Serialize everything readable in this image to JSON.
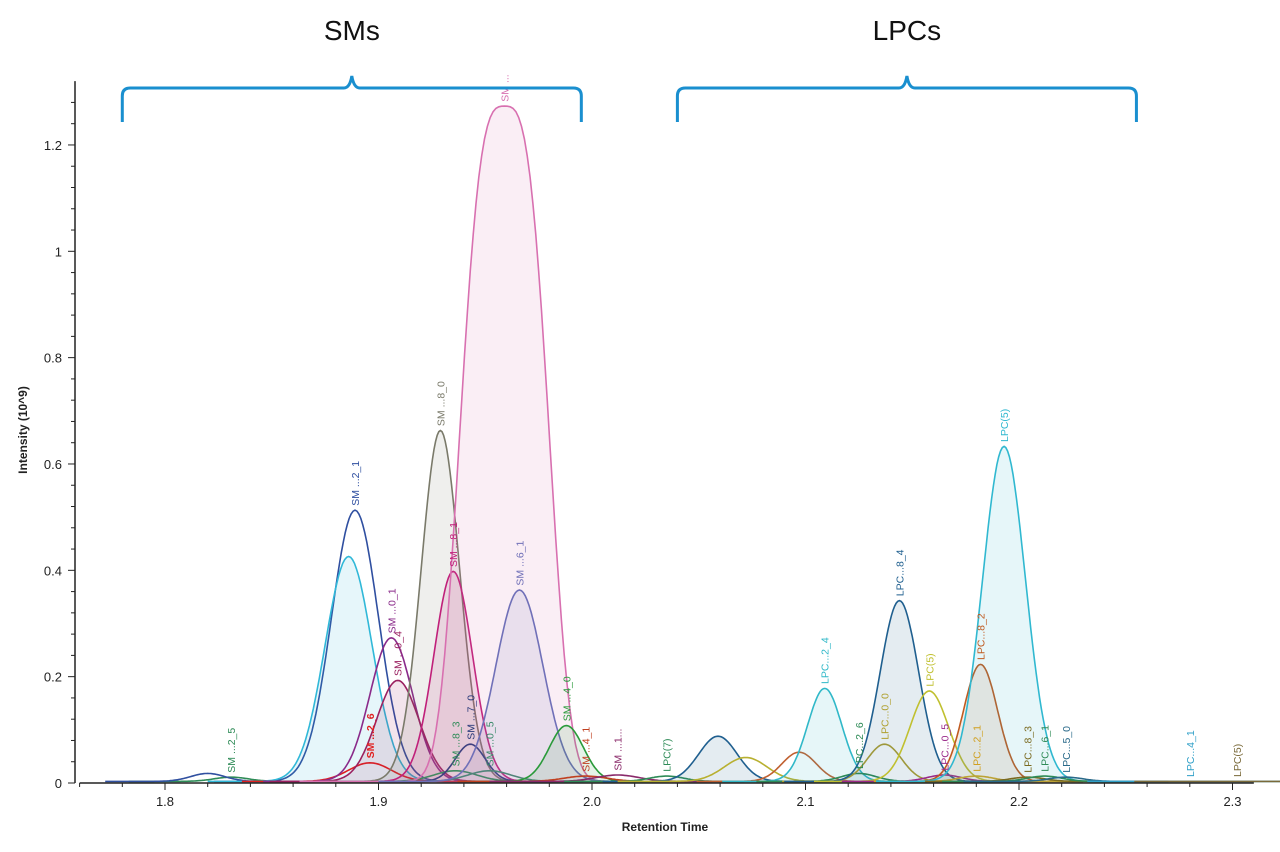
{
  "chart_data": {
    "type": "line",
    "xlabel": "Retention Time",
    "ylabel": "Intensity (10^9)",
    "xlim": [
      1.76,
      2.31
    ],
    "ylim": [
      0,
      1.32
    ],
    "xticks": [
      "1.8",
      "1.9",
      "2.0",
      "2.1",
      "2.2",
      "2.3"
    ],
    "yticks": [
      "0",
      "0.2",
      "0.4",
      "0.6",
      "0.8",
      "1",
      "1.2"
    ],
    "grid": false,
    "groups": [
      {
        "label": "SMs",
        "x_range": [
          1.78,
          1.995
        ]
      },
      {
        "label": "LPCs",
        "x_range": [
          2.04,
          2.255
        ]
      }
    ],
    "peaks": [
      {
        "label": "SM ...2_5",
        "color": "#2e8b57",
        "rt": 1.831,
        "intensity": 0.008,
        "width": 0.008,
        "fill": false
      },
      {
        "label": "",
        "color": "#3050a0",
        "rt": 1.82,
        "intensity": 0.015,
        "width": 0.008,
        "fill": false
      },
      {
        "label": "SM ...2_1",
        "color": "#2f4fa0",
        "rt": 1.889,
        "intensity": 0.51,
        "width": 0.011,
        "fill": false
      },
      {
        "label": "",
        "color": "#30b8d8",
        "rt": 1.886,
        "intensity": 0.423,
        "width": 0.011,
        "fill": true
      },
      {
        "label": "SM ...2_6",
        "color": "#e02020",
        "rt": 1.896,
        "intensity": 0.035,
        "width": 0.01,
        "fill": false,
        "bold": true
      },
      {
        "label": "SM ...0_1",
        "color": "#8a2a8a",
        "rt": 1.906,
        "intensity": 0.27,
        "width": 0.01,
        "fill": false
      },
      {
        "label": "SM ...0_4",
        "color": "#9a2060",
        "rt": 1.909,
        "intensity": 0.19,
        "width": 0.01,
        "fill": true
      },
      {
        "label": "SM ...8_0",
        "color": "#7a7a6a",
        "rt": 1.929,
        "intensity": 0.66,
        "width": 0.009,
        "fill": true
      },
      {
        "label": "SM ...8_1",
        "color": "#c0207a",
        "rt": 1.935,
        "intensity": 0.395,
        "width": 0.009,
        "fill": true
      },
      {
        "label": "SM ...8_3",
        "color": "#2e8b57",
        "rt": 1.936,
        "intensity": 0.02,
        "width": 0.01,
        "fill": false
      },
      {
        "label": "SM ...7_0",
        "color": "#2a3a7a",
        "rt": 1.943,
        "intensity": 0.07,
        "width": 0.007,
        "fill": false
      },
      {
        "label": "SM ...0_5",
        "color": "#3a8a6a",
        "rt": 1.952,
        "intensity": 0.02,
        "width": 0.01,
        "fill": false
      },
      {
        "label": "SM ...",
        "color": "#d870b0",
        "rt": 1.959,
        "intensity": 1.27,
        "width": 0.016,
        "fill": true,
        "flat": true
      },
      {
        "label": "SM ...6_1",
        "color": "#7070b8",
        "rt": 1.966,
        "intensity": 0.36,
        "width": 0.011,
        "fill": true
      },
      {
        "label": "SM ...4_0",
        "color": "#2a9a3a",
        "rt": 1.988,
        "intensity": 0.105,
        "width": 0.008,
        "fill": true
      },
      {
        "label": "SM ...4_1",
        "color": "#c04020",
        "rt": 1.997,
        "intensity": 0.01,
        "width": 0.01,
        "fill": false
      },
      {
        "label": "SM ...1...",
        "color": "#8a2a6a",
        "rt": 2.012,
        "intensity": 0.012,
        "width": 0.01,
        "fill": false
      },
      {
        "label": "LPC(7)",
        "color": "#2e8b57",
        "rt": 2.035,
        "intensity": 0.01,
        "width": 0.008,
        "fill": false
      },
      {
        "label": "",
        "color": "#1f5f8f",
        "rt": 2.059,
        "intensity": 0.085,
        "width": 0.009,
        "fill": true
      },
      {
        "label": "",
        "color": "#b8b030",
        "rt": 2.072,
        "intensity": 0.045,
        "width": 0.01,
        "fill": false
      },
      {
        "label": "",
        "color": "#c06030",
        "rt": 2.097,
        "intensity": 0.055,
        "width": 0.008,
        "fill": false
      },
      {
        "label": "LPC...2_4",
        "color": "#30b8c8",
        "rt": 2.109,
        "intensity": 0.175,
        "width": 0.008,
        "fill": true
      },
      {
        "label": "LPC...2_6",
        "color": "#2e8b57",
        "rt": 2.125,
        "intensity": 0.015,
        "width": 0.008,
        "fill": false
      },
      {
        "label": "LPC...0_0",
        "color": "#b0a030",
        "rt": 2.137,
        "intensity": 0.07,
        "width": 0.008,
        "fill": false
      },
      {
        "label": "LPC...8_4",
        "color": "#1f5f8f",
        "rt": 2.144,
        "intensity": 0.34,
        "width": 0.009,
        "fill": true
      },
      {
        "label": "LPC(5)",
        "color": "#c0c030",
        "rt": 2.158,
        "intensity": 0.17,
        "width": 0.009,
        "fill": false
      },
      {
        "label": "LPC...0_5",
        "color": "#9a2a8a",
        "rt": 2.165,
        "intensity": 0.012,
        "width": 0.008,
        "fill": false
      },
      {
        "label": "LPC...8_2",
        "color": "#c05a20",
        "rt": 2.182,
        "intensity": 0.22,
        "width": 0.008,
        "fill": true
      },
      {
        "label": "LPC...2_1",
        "color": "#d0a020",
        "rt": 2.18,
        "intensity": 0.01,
        "width": 0.008,
        "fill": false
      },
      {
        "label": "LPC(5)",
        "color": "#30b8d0",
        "rt": 2.193,
        "intensity": 0.63,
        "width": 0.01,
        "fill": true
      },
      {
        "label": "LPC...8_3",
        "color": "#7a6a20",
        "rt": 2.204,
        "intensity": 0.008,
        "width": 0.008,
        "fill": false
      },
      {
        "label": "LPC...6_1",
        "color": "#2e8b57",
        "rt": 2.212,
        "intensity": 0.01,
        "width": 0.008,
        "fill": false
      },
      {
        "label": "LPC...5_0",
        "color": "#2a6a8a",
        "rt": 2.222,
        "intensity": 0.008,
        "width": 0.008,
        "fill": false
      },
      {
        "label": "LPC...4_1",
        "color": "#30a0c8",
        "rt": 2.28,
        "intensity": 0.0,
        "width": 0.008,
        "fill": false
      },
      {
        "label": "LPC(5)",
        "color": "#7a6a3a",
        "rt": 2.302,
        "intensity": 0.0,
        "width": 0.008,
        "fill": false
      }
    ]
  },
  "colors": {
    "bracket": "#1a8fcf",
    "axis": "#222222"
  }
}
